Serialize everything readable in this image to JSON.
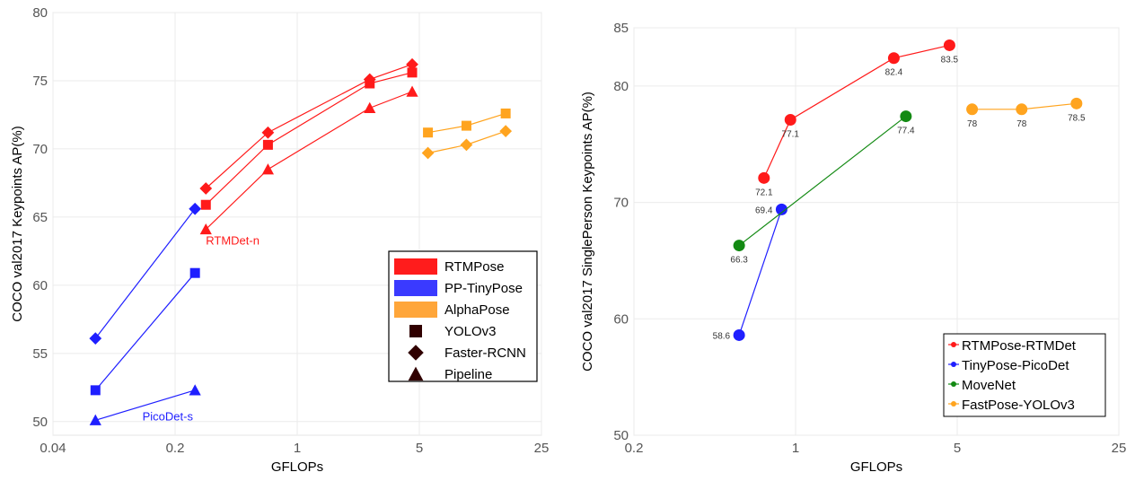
{
  "chart_data": [
    {
      "type": "line",
      "xlabel": "GFLOPs",
      "ylabel": "COCO val2017 Keypoints AP(%)",
      "xscale": "log",
      "xlim": [
        0.04,
        25
      ],
      "ylim": [
        49,
        80
      ],
      "xticks": [
        0.04,
        0.2,
        1,
        5,
        25
      ],
      "xtick_labels": [
        "0.04",
        "0.2",
        "1",
        "5",
        "25"
      ],
      "yticks": [
        50,
        55,
        60,
        65,
        70,
        75,
        80
      ],
      "ytick_labels": [
        "50",
        "55",
        "60",
        "65",
        "70",
        "75",
        "80"
      ],
      "grid": true,
      "legend_position": "bottom-right",
      "legend": {
        "colors": [
          {
            "label": "RTMPose",
            "color": "#ff1c1c"
          },
          {
            "label": "PP-TinyPose",
            "color": "#3a3aff"
          },
          {
            "label": "AlphaPose",
            "color": "#ffa63a"
          }
        ],
        "markers": [
          {
            "label": "YOLOv3",
            "marker": "square"
          },
          {
            "label": "Faster-RCNN",
            "marker": "diamond"
          },
          {
            "label": "Pipeline",
            "marker": "triangle"
          }
        ]
      },
      "series": [
        {
          "family": "RTMPose",
          "detector": "Faster-RCNN",
          "color": "#ff1a1a",
          "marker": "diamond",
          "x": [
            0.3,
            0.68,
            2.6,
            4.55
          ],
          "y": [
            67.1,
            71.2,
            75.1,
            76.2
          ]
        },
        {
          "family": "RTMPose",
          "detector": "YOLOv3",
          "color": "#ff1a1a",
          "marker": "square",
          "x": [
            0.3,
            0.68,
            2.6,
            4.55
          ],
          "y": [
            65.9,
            70.3,
            74.8,
            75.6
          ]
        },
        {
          "family": "RTMPose",
          "detector": "Pipeline",
          "color": "#ff1a1a",
          "marker": "triangle",
          "x": [
            0.3,
            0.68,
            2.6,
            4.55
          ],
          "y": [
            64.1,
            68.5,
            73.0,
            74.2
          ]
        },
        {
          "family": "PP-TinyPose",
          "detector": "Faster-RCNN",
          "color": "#1f1fff",
          "marker": "diamond",
          "x": [
            0.07,
            0.26
          ],
          "y": [
            56.1,
            65.6
          ]
        },
        {
          "family": "PP-TinyPose",
          "detector": "YOLOv3",
          "color": "#1f1fff",
          "marker": "square",
          "x": [
            0.07,
            0.26
          ],
          "y": [
            52.3,
            60.9
          ]
        },
        {
          "family": "PP-TinyPose",
          "detector": "Pipeline",
          "color": "#1f1fff",
          "marker": "triangle",
          "x": [
            0.07,
            0.26
          ],
          "y": [
            50.1,
            52.3
          ]
        },
        {
          "family": "AlphaPose",
          "detector": "YOLOv3",
          "color": "#ffa41f",
          "marker": "square",
          "x": [
            5.6,
            9.3,
            15.6
          ],
          "y": [
            71.2,
            71.7,
            72.6
          ]
        },
        {
          "family": "AlphaPose",
          "detector": "Faster-RCNN",
          "color": "#ffa41f",
          "marker": "diamond",
          "x": [
            5.6,
            9.3,
            15.6
          ],
          "y": [
            69.7,
            70.3,
            71.3
          ]
        }
      ],
      "annotations": [
        {
          "text": "RTMDet-n",
          "x": 0.3,
          "y": 63.0,
          "color": "#ff1a1a"
        },
        {
          "text": "PicoDet-s",
          "x": 0.13,
          "y": 50.1,
          "color": "#1f1fff"
        }
      ]
    },
    {
      "type": "line",
      "xlabel": "GFLOPs",
      "ylabel": "COCO val2017 SinglePerson Keypoints AP(%)",
      "xscale": "log",
      "xlim": [
        0.2,
        25
      ],
      "ylim": [
        50,
        85
      ],
      "xticks": [
        0.2,
        1,
        5,
        25
      ],
      "xtick_labels": [
        "0.2",
        "1",
        "5",
        "25"
      ],
      "yticks": [
        50,
        60,
        70,
        80,
        85
      ],
      "ytick_labels": [
        "50",
        "60",
        "70",
        "80",
        "85"
      ],
      "grid": true,
      "legend_position": "bottom-right",
      "series": [
        {
          "name": "RTMPose-RTMDet",
          "color": "#ff1a1a",
          "x": [
            0.73,
            0.95,
            2.66,
            4.63
          ],
          "y": [
            72.1,
            77.1,
            82.4,
            83.5
          ],
          "labels": [
            "72.1",
            "77.1",
            "82.4",
            "83.5"
          ]
        },
        {
          "name": "TinyPose-PicoDet",
          "color": "#1f1fff",
          "x": [
            0.57,
            0.87
          ],
          "y": [
            58.6,
            69.4
          ],
          "labels": [
            "58.6",
            "69.4"
          ]
        },
        {
          "name": "MoveNet",
          "color": "#138a13",
          "x": [
            0.57,
            3.0
          ],
          "y": [
            66.3,
            77.4
          ],
          "labels": [
            "66.3",
            "77.4"
          ]
        },
        {
          "name": "FastPose-YOLOv3",
          "color": "#ffa41f",
          "x": [
            5.8,
            9.5,
            16.4
          ],
          "y": [
            78.0,
            78.0,
            78.5
          ],
          "labels": [
            "78",
            "78",
            "78.5"
          ]
        }
      ]
    }
  ]
}
